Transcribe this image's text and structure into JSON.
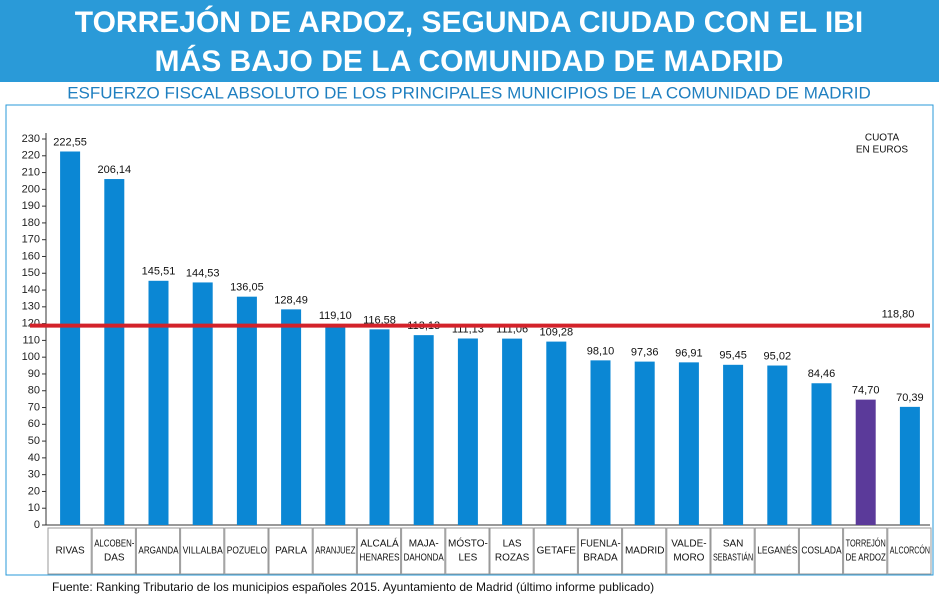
{
  "chart_data": {
    "type": "bar",
    "title": [
      "TORREJÓN DE ARDOZ, SEGUNDA CIUDAD CON EL IBI",
      "MÁS BAJO DE LA COMUNIDAD DE MADRID"
    ],
    "subtitle": "ESFUERZO FISCAL ABSOLUTO DE LOS PRINCIPALES MUNICIPIOS DE LA COMUNIDAD DE MADRID",
    "unit_label": [
      "CUOTA",
      "EN EUROS"
    ],
    "categories": [
      [
        "RIVAS"
      ],
      [
        "ALCOBEN-",
        "DAS"
      ],
      [
        "ARGANDA"
      ],
      [
        "VILLALBA"
      ],
      [
        "POZUELO"
      ],
      [
        "PARLA"
      ],
      [
        "ARANJUEZ"
      ],
      [
        "ALCALÁ",
        "HENARES"
      ],
      [
        "MAJA-",
        "DAHONDA"
      ],
      [
        "MÓSTO-",
        "LES"
      ],
      [
        "LAS",
        "ROZAS"
      ],
      [
        "GETAFE"
      ],
      [
        "FUENLA-",
        "BRADA"
      ],
      [
        "MADRID"
      ],
      [
        "VALDE-",
        "MORO"
      ],
      [
        "SAN",
        "SEBASTIÁN"
      ],
      [
        "LEGANÉS"
      ],
      [
        "COSLADA"
      ],
      [
        "TORREJÓN",
        "DE ARDOZ"
      ],
      [
        "ALCORCÓN"
      ]
    ],
    "values": [
      222.55,
      206.14,
      145.51,
      144.53,
      136.05,
      128.49,
      119.1,
      116.58,
      113.13,
      111.13,
      111.06,
      109.28,
      98.1,
      97.36,
      96.91,
      95.45,
      95.02,
      84.46,
      74.7,
      70.39
    ],
    "value_labels": [
      "222,55",
      "206,14",
      "145,51",
      "144,53",
      "136,05",
      "128,49",
      "119,10",
      "116,58",
      "113,13",
      "111,13",
      "111,06",
      "109,28",
      "98,10",
      "97,36",
      "96,91",
      "95,45",
      "95,02",
      "84,46",
      "74,70",
      "70,39"
    ],
    "colors": [
      "#0b87d4",
      "#0b87d4",
      "#0b87d4",
      "#0b87d4",
      "#0b87d4",
      "#0b87d4",
      "#0b87d4",
      "#0b87d4",
      "#0b87d4",
      "#0b87d4",
      "#0b87d4",
      "#0b87d4",
      "#0b87d4",
      "#0b87d4",
      "#0b87d4",
      "#0b87d4",
      "#0b87d4",
      "#0b87d4",
      "#5b3a9a",
      "#0b87d4"
    ],
    "reference_line": {
      "value": 118.8,
      "label": "118,80",
      "color": "#d3222a"
    },
    "ylim": [
      0,
      230
    ],
    "yticks": [
      0,
      10,
      20,
      30,
      40,
      50,
      60,
      70,
      80,
      90,
      100,
      110,
      120,
      130,
      140,
      150,
      160,
      170,
      180,
      190,
      200,
      210,
      220,
      230
    ],
    "source": "Fuente: Ranking Tributario de los municipios españoles 2015. Ayuntamiento de Madrid (último informe publicado)"
  }
}
